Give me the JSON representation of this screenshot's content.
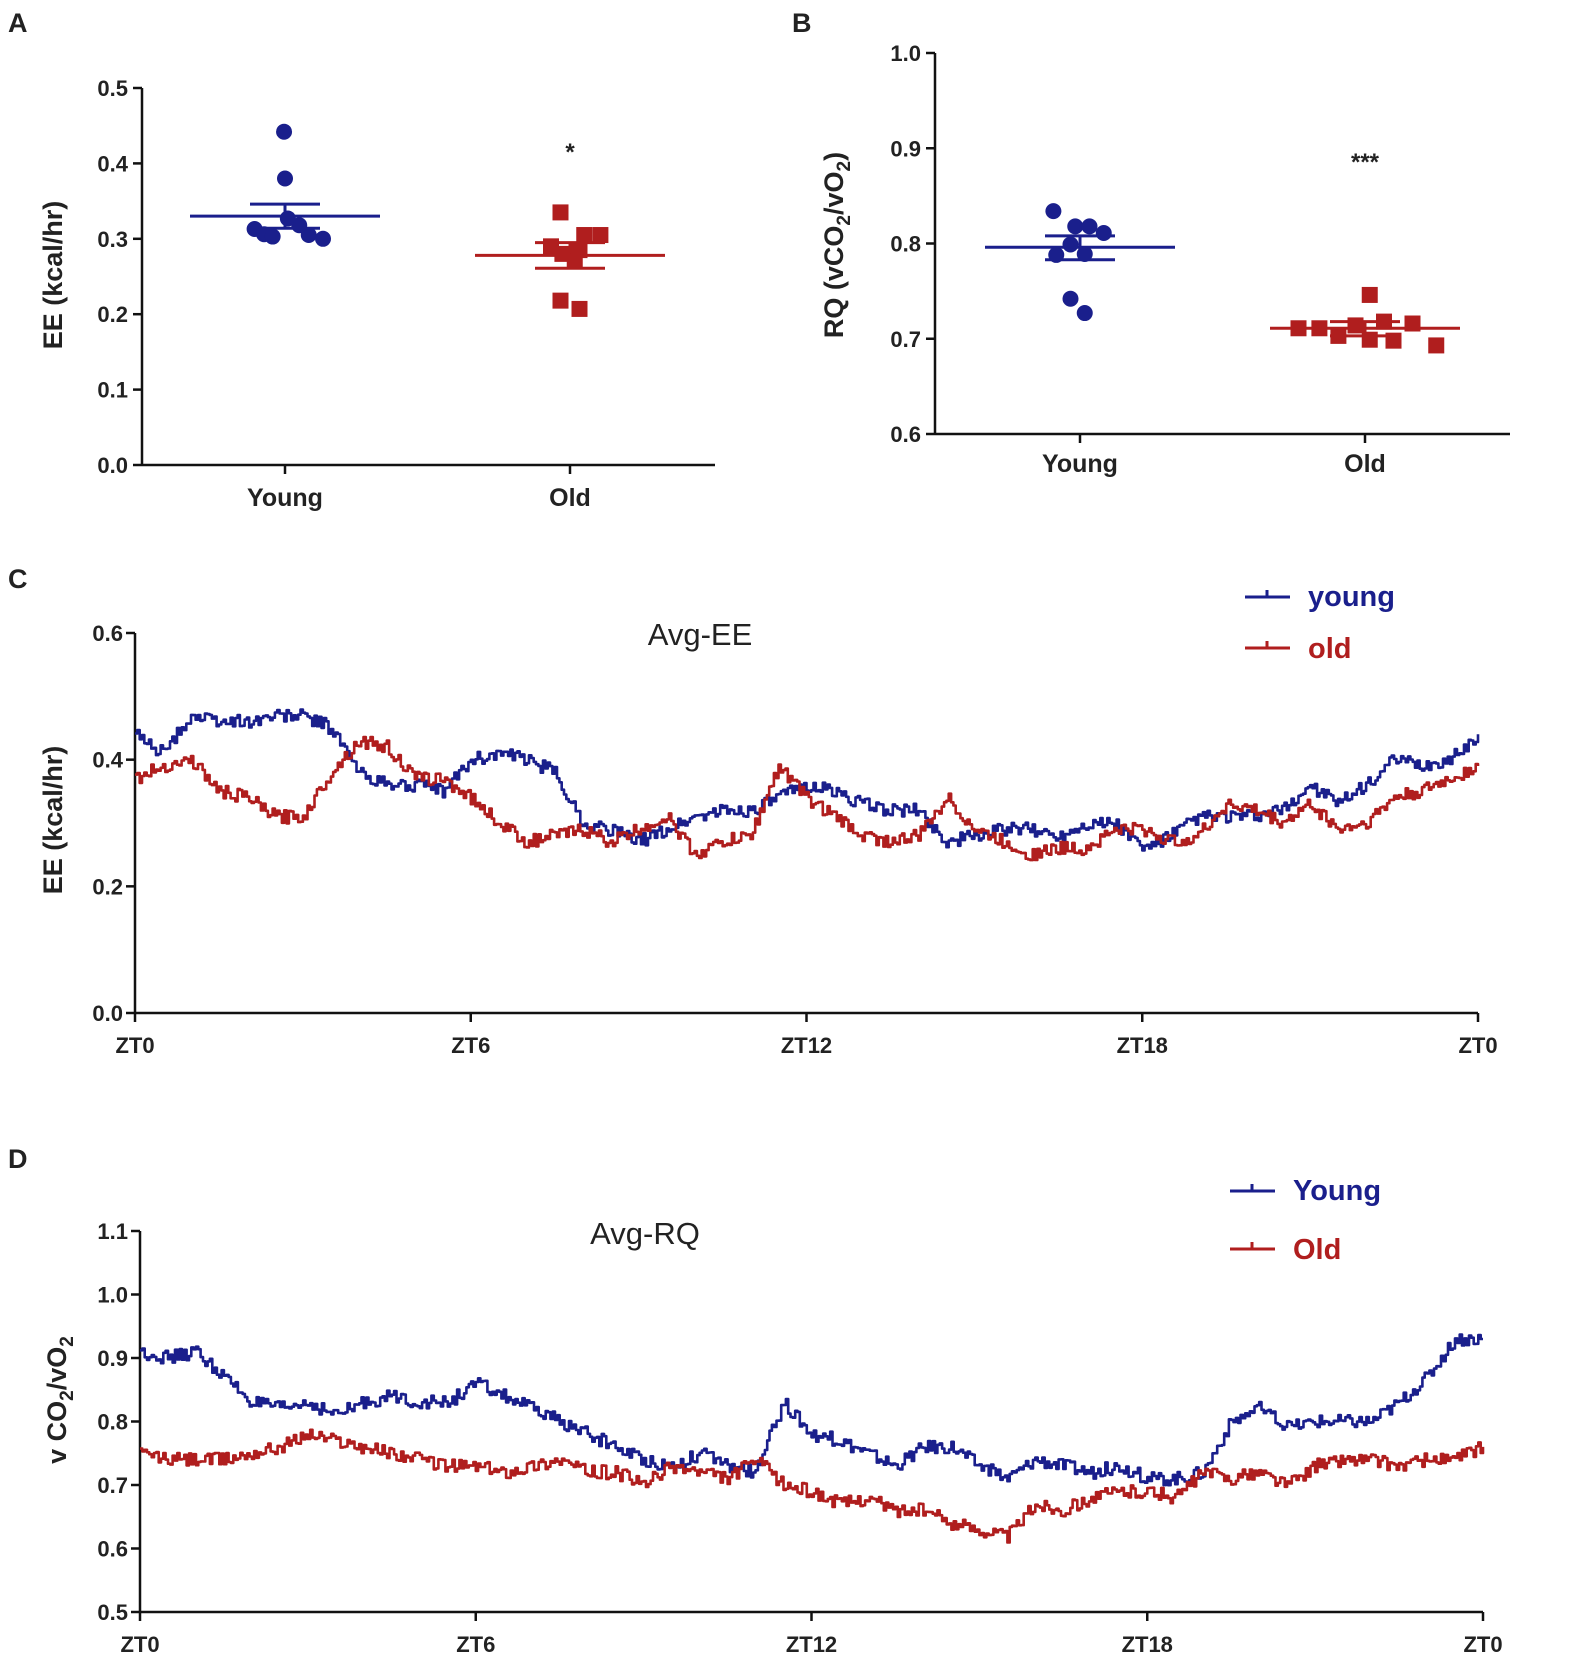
{
  "colors": {
    "young": "#1a1f8c",
    "old": "#b01e1e",
    "axis": "#111111"
  },
  "chart_data": [
    {
      "panel": "A",
      "type": "scatter",
      "ylabel": "EE (kcal/hr)",
      "ylim": [
        0.0,
        0.5
      ],
      "yticks": [
        "0.0",
        "0.1",
        "0.2",
        "0.3",
        "0.4",
        "0.5"
      ],
      "categories": [
        "Young",
        "Old"
      ],
      "significance": [
        "",
        "*"
      ],
      "series": [
        {
          "name": "Young",
          "marker": "circle",
          "mean": 0.33,
          "sem_upper": 0.346,
          "sem_lower": 0.314,
          "points": [
            [
              -0.32,
              0.313
            ],
            [
              -0.22,
              0.306
            ],
            [
              -0.13,
              0.303
            ],
            [
              -0.01,
              0.442
            ],
            [
              0.0,
              0.38
            ],
            [
              0.03,
              0.327
            ],
            [
              0.15,
              0.318
            ],
            [
              0.25,
              0.305
            ],
            [
              0.4,
              0.3
            ]
          ]
        },
        {
          "name": "Old",
          "marker": "square",
          "mean": 0.278,
          "sem_upper": 0.295,
          "sem_lower": 0.261,
          "points": [
            [
              -0.1,
              0.335
            ],
            [
              -0.2,
              0.29
            ],
            [
              -0.08,
              0.28
            ],
            [
              0.1,
              0.285
            ],
            [
              0.15,
              0.305
            ],
            [
              0.32,
              0.305
            ],
            [
              -0.1,
              0.218
            ],
            [
              0.1,
              0.207
            ],
            [
              0.05,
              0.27
            ]
          ]
        }
      ]
    },
    {
      "panel": "B",
      "type": "scatter",
      "ylabel": "RQ (vCO2/vO2)",
      "ylim": [
        0.6,
        1.0
      ],
      "yticks": [
        "0.6",
        "0.7",
        "0.8",
        "0.9",
        "1.0"
      ],
      "categories": [
        "Young",
        "Old"
      ],
      "significance": [
        "",
        "***"
      ],
      "series": [
        {
          "name": "Young",
          "marker": "circle",
          "mean": 0.796,
          "sem_upper": 0.808,
          "sem_lower": 0.783,
          "points": [
            [
              -0.28,
              0.834
            ],
            [
              -0.05,
              0.818
            ],
            [
              0.1,
              0.818
            ],
            [
              0.25,
              0.811
            ],
            [
              -0.1,
              0.799
            ],
            [
              0.05,
              0.789
            ],
            [
              -0.25,
              0.788
            ],
            [
              -0.1,
              0.742
            ],
            [
              0.05,
              0.727
            ]
          ]
        },
        {
          "name": "Old",
          "marker": "square",
          "mean": 0.711,
          "sem_upper": 0.718,
          "sem_lower": 0.703,
          "points": [
            [
              -0.7,
              0.711
            ],
            [
              -0.48,
              0.711
            ],
            [
              -0.28,
              0.703
            ],
            [
              -0.1,
              0.714
            ],
            [
              0.05,
              0.699
            ],
            [
              0.2,
              0.718
            ],
            [
              0.3,
              0.698
            ],
            [
              0.5,
              0.716
            ],
            [
              0.75,
              0.693
            ],
            [
              0.05,
              0.746
            ]
          ]
        }
      ]
    },
    {
      "panel": "C",
      "type": "line",
      "title": "Avg-EE",
      "ylabel": "EE (kcal/hr)",
      "ylim": [
        0.0,
        0.6
      ],
      "yticks": [
        "0.0",
        "0.2",
        "0.4",
        "0.6"
      ],
      "xlim": [
        0,
        24
      ],
      "xticks": [
        0,
        6,
        12,
        18,
        24
      ],
      "xticklabels": [
        "ZT0",
        "ZT6",
        "ZT12",
        "ZT18",
        "ZT0"
      ],
      "series": [
        {
          "name": "young",
          "x": [
            0,
            0.5,
            1,
            1.5,
            2,
            2.5,
            3,
            3.5,
            4,
            4.5,
            5,
            5.5,
            6,
            6.5,
            7,
            7.5,
            8,
            8.5,
            9,
            9.5,
            10,
            10.5,
            11,
            11.5,
            12,
            12.5,
            13,
            13.5,
            14,
            14.5,
            15,
            15.5,
            16,
            16.5,
            17,
            17.5,
            18,
            18.5,
            19,
            19.5,
            20,
            20.5,
            21,
            21.5,
            22,
            22.5,
            23,
            23.5,
            24
          ],
          "y": [
            0.44,
            0.41,
            0.47,
            0.46,
            0.46,
            0.47,
            0.47,
            0.45,
            0.38,
            0.36,
            0.36,
            0.35,
            0.4,
            0.41,
            0.4,
            0.38,
            0.3,
            0.29,
            0.27,
            0.29,
            0.31,
            0.32,
            0.32,
            0.34,
            0.36,
            0.35,
            0.33,
            0.32,
            0.32,
            0.27,
            0.28,
            0.29,
            0.29,
            0.28,
            0.3,
            0.3,
            0.26,
            0.28,
            0.31,
            0.31,
            0.31,
            0.32,
            0.36,
            0.33,
            0.36,
            0.4,
            0.39,
            0.4,
            0.44
          ]
        },
        {
          "name": "old",
          "x": [
            0,
            0.5,
            1,
            1.5,
            2,
            2.5,
            3,
            3.5,
            4,
            4.5,
            5,
            5.5,
            6,
            6.5,
            7,
            7.5,
            8,
            8.5,
            9,
            9.5,
            10,
            10.5,
            11,
            11.5,
            12,
            12.5,
            13,
            13.5,
            14,
            14.5,
            15,
            15.5,
            16,
            16.5,
            17,
            17.5,
            18,
            18.5,
            19,
            19.5,
            20,
            20.5,
            21,
            21.5,
            22,
            22.5,
            23,
            23.5,
            24
          ],
          "y": [
            0.37,
            0.39,
            0.4,
            0.35,
            0.34,
            0.31,
            0.31,
            0.38,
            0.43,
            0.42,
            0.37,
            0.37,
            0.34,
            0.3,
            0.27,
            0.28,
            0.29,
            0.27,
            0.29,
            0.31,
            0.25,
            0.27,
            0.28,
            0.39,
            0.34,
            0.31,
            0.28,
            0.27,
            0.28,
            0.34,
            0.29,
            0.27,
            0.25,
            0.26,
            0.26,
            0.29,
            0.29,
            0.27,
            0.28,
            0.33,
            0.32,
            0.3,
            0.33,
            0.29,
            0.3,
            0.34,
            0.35,
            0.37,
            0.39
          ]
        }
      ]
    },
    {
      "panel": "D",
      "type": "line",
      "title": "Avg-RQ",
      "ylabel": "v CO2/vO2",
      "ylim": [
        0.5,
        1.1
      ],
      "yticks": [
        "0.5",
        "0.6",
        "0.7",
        "0.8",
        "0.9",
        "1.0",
        "1.1"
      ],
      "xlim": [
        0,
        24
      ],
      "xticks": [
        0,
        6,
        12,
        18,
        24
      ],
      "xticklabels": [
        "ZT0",
        "ZT6",
        "ZT12",
        "ZT18",
        "ZT0"
      ],
      "series": [
        {
          "name": "Young",
          "x": [
            0,
            0.5,
            1,
            1.5,
            2,
            2.5,
            3,
            3.5,
            4,
            4.5,
            5,
            5.5,
            6,
            6.5,
            7,
            7.5,
            8,
            8.5,
            9,
            9.5,
            10,
            10.5,
            11,
            11.5,
            12,
            12.5,
            13,
            13.5,
            14,
            14.5,
            15,
            15.5,
            16,
            16.5,
            17,
            17.5,
            18,
            18.5,
            19,
            19.5,
            20,
            20.5,
            21,
            21.5,
            22,
            22.5,
            23,
            23.5,
            24
          ],
          "y": [
            0.91,
            0.9,
            0.91,
            0.87,
            0.83,
            0.82,
            0.83,
            0.81,
            0.83,
            0.84,
            0.83,
            0.83,
            0.86,
            0.84,
            0.82,
            0.8,
            0.78,
            0.76,
            0.74,
            0.73,
            0.75,
            0.73,
            0.72,
            0.83,
            0.78,
            0.77,
            0.75,
            0.73,
            0.76,
            0.76,
            0.73,
            0.71,
            0.74,
            0.73,
            0.72,
            0.73,
            0.71,
            0.71,
            0.72,
            0.8,
            0.82,
            0.79,
            0.8,
            0.8,
            0.8,
            0.83,
            0.87,
            0.93,
            0.93
          ]
        },
        {
          "name": "Old",
          "x": [
            0,
            0.5,
            1,
            1.5,
            2,
            2.5,
            3,
            3.5,
            4,
            4.5,
            5,
            5.5,
            6,
            6.5,
            7,
            7.5,
            8,
            8.5,
            9,
            9.5,
            10,
            10.5,
            11,
            11.5,
            12,
            12.5,
            13,
            13.5,
            14,
            14.5,
            15,
            15.5,
            16,
            16.5,
            17,
            17.5,
            18,
            18.5,
            19,
            19.5,
            20,
            20.5,
            21,
            21.5,
            22,
            22.5,
            23,
            23.5,
            24
          ],
          "y": [
            0.75,
            0.74,
            0.74,
            0.74,
            0.75,
            0.76,
            0.78,
            0.77,
            0.76,
            0.75,
            0.74,
            0.73,
            0.73,
            0.72,
            0.73,
            0.74,
            0.72,
            0.72,
            0.7,
            0.73,
            0.72,
            0.71,
            0.74,
            0.7,
            0.69,
            0.67,
            0.68,
            0.66,
            0.66,
            0.64,
            0.63,
            0.62,
            0.67,
            0.66,
            0.68,
            0.69,
            0.69,
            0.68,
            0.72,
            0.71,
            0.72,
            0.7,
            0.73,
            0.74,
            0.74,
            0.73,
            0.74,
            0.74,
            0.76
          ]
        }
      ]
    }
  ],
  "panel_letters": [
    "A",
    "B",
    "C",
    "D"
  ]
}
